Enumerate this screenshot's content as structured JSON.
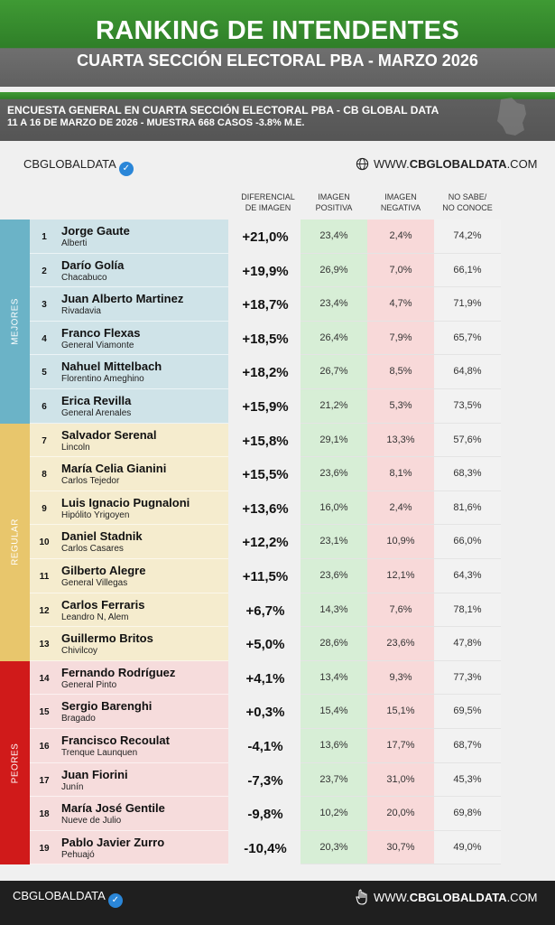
{
  "header": {
    "title": "RANKING DE INTENDENTES",
    "subtitle": "CUARTA SECCIÓN ELECTORAL PBA - MARZO 2026"
  },
  "survey": {
    "line1": "ENCUESTA GENERAL EN CUARTA SECCIÓN ELECTORAL PBA - CB GLOBAL DATA",
    "line2": "11 A 16 DE MARZO  DE 2026 - MUESTRA 668  CASOS -3.8% M.E."
  },
  "brand": {
    "name": "CBGLOBALDATA",
    "url_prefix": "WWW.",
    "url_main": "CBGLOBALDATA",
    "url_suffix": ".COM"
  },
  "columns": {
    "diff": [
      "DIFERENCIAL",
      "DE IMAGEN"
    ],
    "pos": [
      "IMAGEN",
      "POSITIVA"
    ],
    "neg": [
      "IMAGEN",
      "NEGATIVA"
    ],
    "ns": [
      "NO SABE/",
      "NO CONOCE"
    ]
  },
  "groups": [
    {
      "label": "MEJORES",
      "color": "#6bb3c7",
      "band": "#cfe3e8",
      "start": 0,
      "count": 6
    },
    {
      "label": "REGULAR",
      "color": "#e8c66c",
      "band": "#f5ecce",
      "start": 6,
      "count": 7
    },
    {
      "label": "PEORES",
      "color": "#d01a1a",
      "band": "#f6dcdc",
      "start": 13,
      "count": 6
    }
  ],
  "rows": [
    {
      "rank": "1",
      "name": "Jorge Gaute",
      "place": "Alberti",
      "diff": "+21,0%",
      "pos": "23,4%",
      "neg": "2,4%",
      "ns": "74,2%"
    },
    {
      "rank": "2",
      "name": "Darío Golía",
      "place": "Chacabuco",
      "diff": "+19,9%",
      "pos": "26,9%",
      "neg": "7,0%",
      "ns": "66,1%"
    },
    {
      "rank": "3",
      "name": "Juan Alberto Martinez",
      "place": "Rivadavia",
      "diff": "+18,7%",
      "pos": "23,4%",
      "neg": "4,7%",
      "ns": "71,9%"
    },
    {
      "rank": "4",
      "name": "Franco Flexas",
      "place": "General Viamonte",
      "diff": "+18,5%",
      "pos": "26,4%",
      "neg": "7,9%",
      "ns": "65,7%"
    },
    {
      "rank": "5",
      "name": "Nahuel Mittelbach",
      "place": "Florentino Ameghino",
      "diff": "+18,2%",
      "pos": "26,7%",
      "neg": "8,5%",
      "ns": "64,8%"
    },
    {
      "rank": "6",
      "name": "Erica Revilla",
      "place": "General Arenales",
      "diff": "+15,9%",
      "pos": "21,2%",
      "neg": "5,3%",
      "ns": "73,5%"
    },
    {
      "rank": "7",
      "name": "Salvador Serenal",
      "place": "Lincoln",
      "diff": "+15,8%",
      "pos": "29,1%",
      "neg": "13,3%",
      "ns": "57,6%"
    },
    {
      "rank": "8",
      "name": "María Celia Gianini",
      "place": "Carlos Tejedor",
      "diff": "+15,5%",
      "pos": "23,6%",
      "neg": "8,1%",
      "ns": "68,3%"
    },
    {
      "rank": "9",
      "name": "Luis Ignacio Pugnaloni",
      "place": "Hipólito Yrigoyen",
      "diff": "+13,6%",
      "pos": "16,0%",
      "neg": "2,4%",
      "ns": "81,6%"
    },
    {
      "rank": "10",
      "name": "Daniel Stadnik",
      "place": "Carlos Casares",
      "diff": "+12,2%",
      "pos": "23,1%",
      "neg": "10,9%",
      "ns": "66,0%"
    },
    {
      "rank": "11",
      "name": "Gilberto Alegre",
      "place": "General Villegas",
      "diff": "+11,5%",
      "pos": "23,6%",
      "neg": "12,1%",
      "ns": "64,3%"
    },
    {
      "rank": "12",
      "name": "Carlos Ferraris",
      "place": "Leandro N, Alem",
      "diff": "+6,7%",
      "pos": "14,3%",
      "neg": "7,6%",
      "ns": "78,1%"
    },
    {
      "rank": "13",
      "name": "Guillermo Britos",
      "place": "Chivilcoy",
      "diff": "+5,0%",
      "pos": "28,6%",
      "neg": "23,6%",
      "ns": "47,8%"
    },
    {
      "rank": "14",
      "name": "Fernando Rodríguez",
      "place": "General Pinto",
      "diff": "+4,1%",
      "pos": "13,4%",
      "neg": "9,3%",
      "ns": "77,3%"
    },
    {
      "rank": "15",
      "name": "Sergio Barenghi",
      "place": "Bragado",
      "diff": "+0,3%",
      "pos": "15,4%",
      "neg": "15,1%",
      "ns": "69,5%"
    },
    {
      "rank": "16",
      "name": "Francisco Recoulat",
      "place": "Trenque Launquen",
      "diff": "-4,1%",
      "pos": "13,6%",
      "neg": "17,7%",
      "ns": "68,7%"
    },
    {
      "rank": "17",
      "name": "Juan Fiorini",
      "place": "Junín",
      "diff": "-7,3%",
      "pos": "23,7%",
      "neg": "31,0%",
      "ns": "45,3%"
    },
    {
      "rank": "18",
      "name": "María José Gentile",
      "place": "Nueve de Julio",
      "diff": "-9,8%",
      "pos": "10,2%",
      "neg": "20,0%",
      "ns": "69,8%"
    },
    {
      "rank": "19",
      "name": "Pablo Javier Zurro",
      "place": "Pehuajó",
      "diff": "-10,4%",
      "pos": "20,3%",
      "neg": "30,7%",
      "ns": "49,0%"
    }
  ]
}
